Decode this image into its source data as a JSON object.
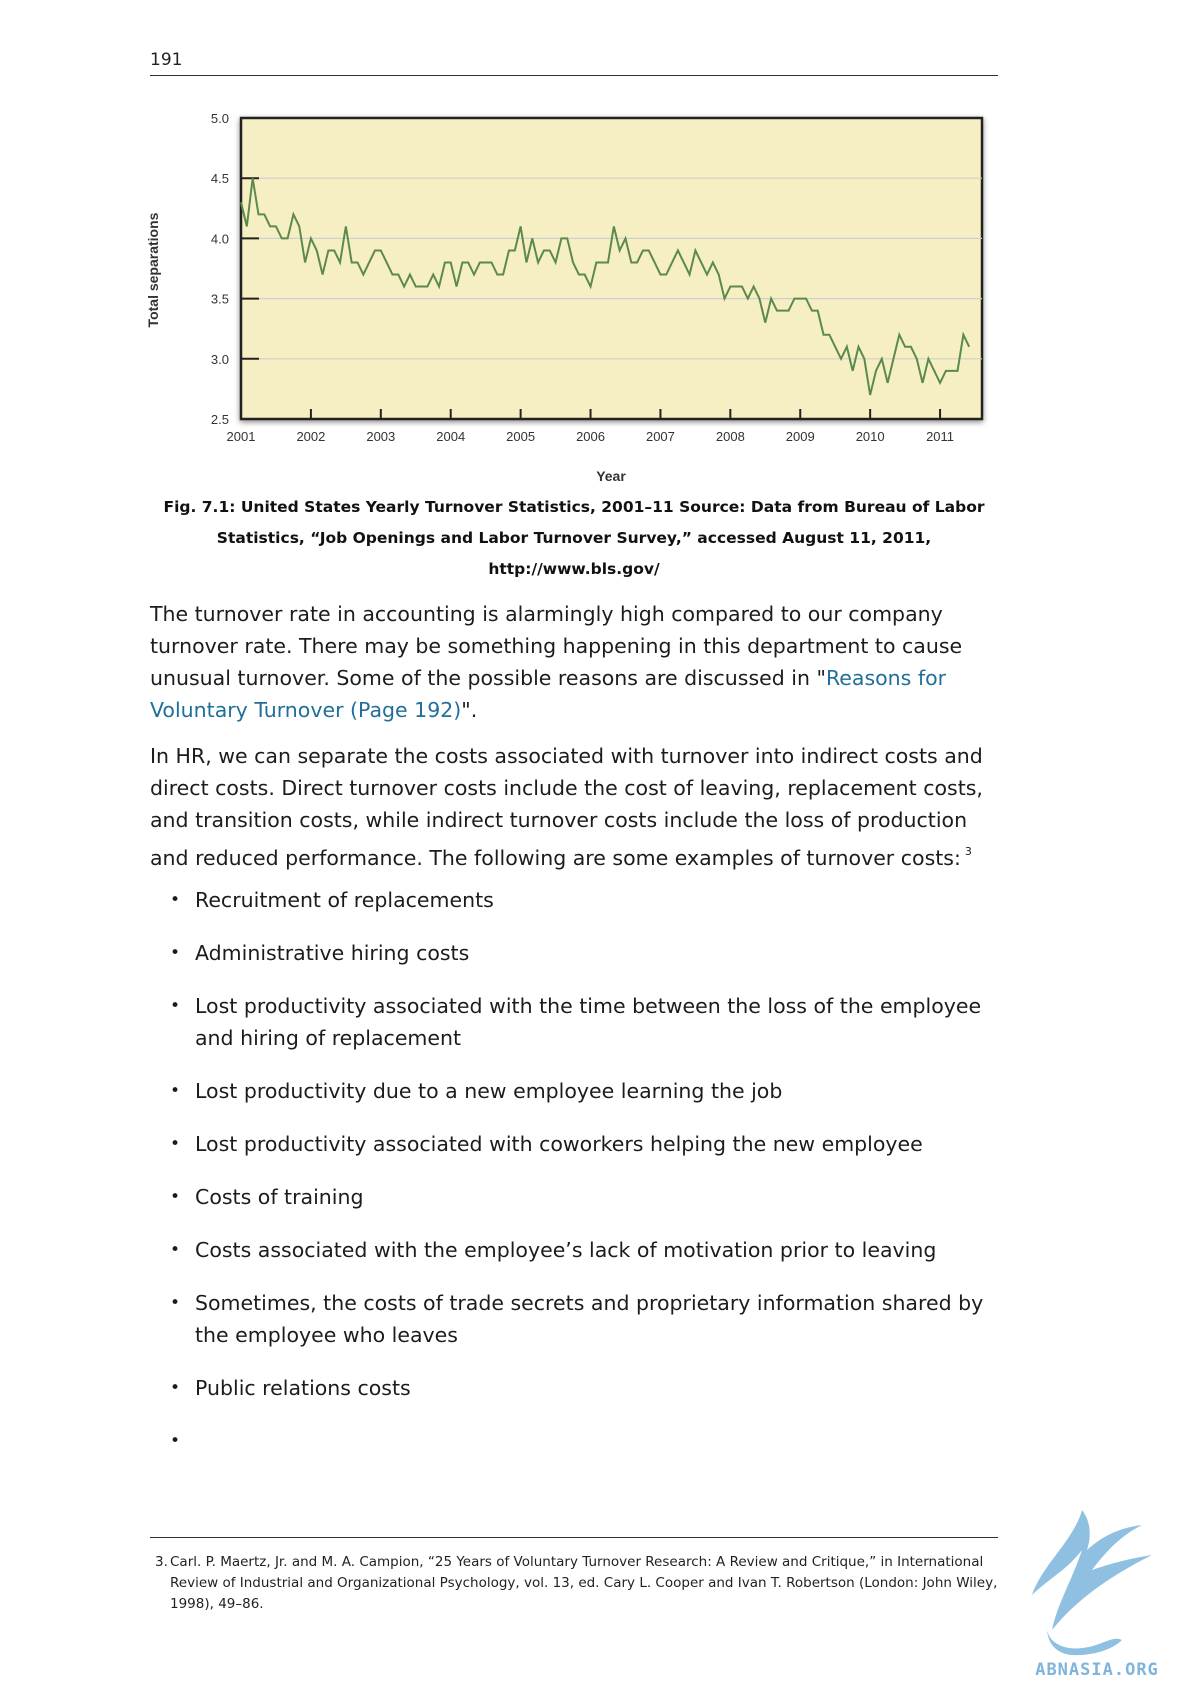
{
  "page": {
    "number": "191"
  },
  "chart_data": {
    "type": "line",
    "title": "",
    "xlabel": "Year",
    "ylabel": "Total separations",
    "ylim": [
      2.5,
      5.0
    ],
    "xlim": [
      2001,
      2011.6
    ],
    "yticks": [
      "2.5",
      "3.0",
      "3.5",
      "4.0",
      "4.5",
      "5.0"
    ],
    "xticks": [
      "2001",
      "2002",
      "2003",
      "2004",
      "2005",
      "2006",
      "2007",
      "2008",
      "2009",
      "2010",
      "2011"
    ],
    "grid": "horizontal",
    "background_color": "#f7efc4",
    "line_color": "#5b8a4a",
    "series": [
      {
        "x_start": "2001-01",
        "frequency": "monthly",
        "values": [
          4.3,
          4.1,
          4.5,
          4.2,
          4.2,
          4.1,
          4.1,
          4.0,
          4.0,
          4.2,
          4.1,
          3.8,
          4.0,
          3.9,
          3.7,
          3.9,
          3.9,
          3.8,
          4.1,
          3.8,
          3.8,
          3.7,
          3.8,
          3.9,
          3.9,
          3.8,
          3.7,
          3.7,
          3.6,
          3.7,
          3.6,
          3.6,
          3.6,
          3.7,
          3.6,
          3.8,
          3.8,
          3.6,
          3.8,
          3.8,
          3.7,
          3.8,
          3.8,
          3.8,
          3.7,
          3.7,
          3.9,
          3.9,
          4.1,
          3.8,
          4.0,
          3.8,
          3.9,
          3.9,
          3.8,
          4.0,
          4.0,
          3.8,
          3.7,
          3.7,
          3.6,
          3.8,
          3.8,
          3.8,
          4.1,
          3.9,
          4.0,
          3.8,
          3.8,
          3.9,
          3.9,
          3.8,
          3.7,
          3.7,
          3.8,
          3.9,
          3.8,
          3.7,
          3.9,
          3.8,
          3.7,
          3.8,
          3.7,
          3.5,
          3.6,
          3.6,
          3.6,
          3.5,
          3.6,
          3.5,
          3.3,
          3.5,
          3.4,
          3.4,
          3.4,
          3.5,
          3.5,
          3.5,
          3.4,
          3.4,
          3.2,
          3.2,
          3.1,
          3.0,
          3.1,
          2.9,
          3.1,
          3.0,
          2.7,
          2.9,
          3.0,
          2.8,
          3.0,
          3.2,
          3.1,
          3.1,
          3.0,
          2.8,
          3.0,
          2.9,
          2.8,
          2.9,
          2.9,
          2.9,
          3.2,
          3.1
        ]
      }
    ]
  },
  "figure": {
    "caption": "Fig. 7.1: United States Yearly Turnover Statistics, 2001–11 Source: Data from Bureau of Labor Statistics, “Job Openings and Labor Turnover Survey,” accessed August 11, 2011, http://www.bls.gov/"
  },
  "body": {
    "p1_before_link": "The turnover rate in accounting is alarmingly high compared to our company turnover rate. There may be something happening in this department to cause unusual turnover. Some of the possible reasons are discussed in \"",
    "p1_link": "Reasons for Voluntary Turnover (Page 192)",
    "p1_after_link": "\".",
    "p2_text": "In HR, we can separate the costs associated with turnover into indirect costs and direct costs. Direct turnover costs include the cost of leaving, replacement costs, and transition costs, while indirect turnover costs include the loss of production and reduced performance. The following are some examples of turnover costs:",
    "p2_footnote_ref": "3"
  },
  "list": {
    "bullet": "•",
    "items": [
      "Recruitment of replacements",
      "Administrative hiring costs",
      "Lost productivity associated with the time between the loss of the employee and hiring of replacement",
      "Lost productivity due to a new employee learning the job",
      "Lost productivity associated with coworkers helping the new employee",
      "Costs of training",
      "Costs associated with the employee’s lack of motivation prior to leaving",
      "Sometimes, the costs of trade secrets and proprietary information shared by the employee who leaves",
      "Public relations costs",
      ""
    ]
  },
  "footnote": {
    "number": "3.",
    "text": "Carl. P. Maertz, Jr. and M. A. Campion, “25 Years of Voluntary Turnover Research: A Review and Critique,” in International Review of Industrial and Organizational Psychology, vol. 13, ed. Cary L. Cooper and Ivan T. Robertson (London: John Wiley, 1998), 49–86."
  },
  "watermark": {
    "text": "ABNASIA.ORG",
    "color": "#7fb5db"
  }
}
